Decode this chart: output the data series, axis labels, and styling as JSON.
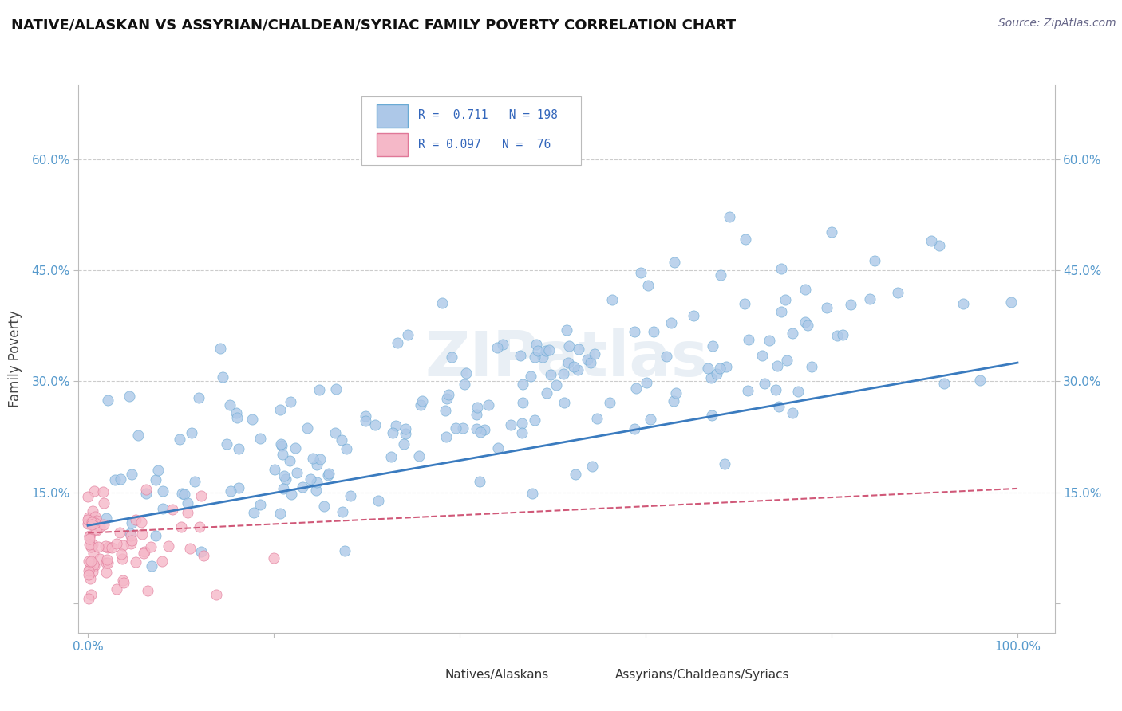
{
  "title": "NATIVE/ALASKAN VS ASSYRIAN/CHALDEAN/SYRIAC FAMILY POVERTY CORRELATION CHART",
  "source": "Source: ZipAtlas.com",
  "ylabel": "Family Poverty",
  "x_ticks": [
    0.0,
    0.2,
    0.4,
    0.6,
    0.8,
    1.0
  ],
  "y_ticks": [
    0.0,
    0.15,
    0.3,
    0.45,
    0.6
  ],
  "xlim": [
    -0.01,
    1.04
  ],
  "ylim": [
    -0.04,
    0.7
  ],
  "blue_R": 0.711,
  "blue_N": 198,
  "pink_R": 0.097,
  "pink_N": 76,
  "blue_color": "#adc8e8",
  "blue_edge_color": "#6aaad4",
  "blue_line_color": "#3a7bbf",
  "pink_color": "#f5b8c8",
  "pink_edge_color": "#e07898",
  "pink_line_color": "#d05878",
  "background_color": "#ffffff",
  "grid_color": "#cccccc",
  "watermark": "ZIPatlas",
  "blue_line_start_y": 0.105,
  "blue_line_end_y": 0.325,
  "pink_line_start_y": 0.095,
  "pink_line_end_y": 0.155,
  "tick_color": "#5599cc",
  "title_color": "#111111",
  "source_color": "#666688"
}
